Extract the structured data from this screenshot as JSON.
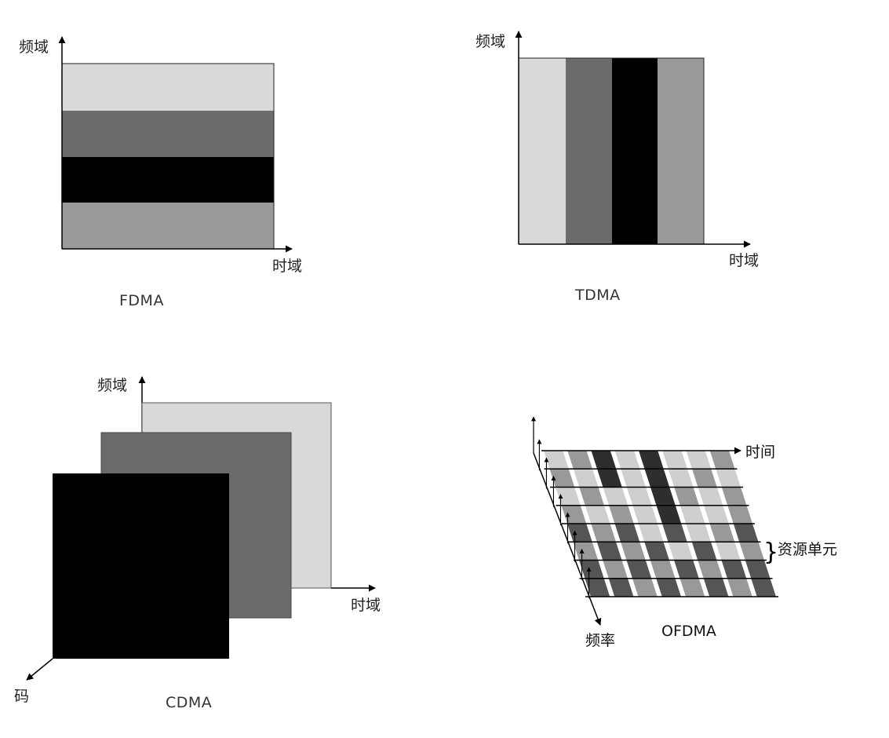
{
  "fdma": {
    "caption": "FDMA",
    "y_axis_label": "频域",
    "x_axis_label": "时域",
    "bands": [
      "#d9d9d9",
      "#6b6b6b",
      "#000000",
      "#999999"
    ]
  },
  "tdma": {
    "caption": "TDMA",
    "y_axis_label": "频域",
    "x_axis_label": "时域",
    "slots": [
      "#d9d9d9",
      "#6b6b6b",
      "#000000",
      "#999999"
    ]
  },
  "cdma": {
    "caption": "CDMA",
    "y_axis_label": "频域",
    "x_axis_label": "时域",
    "z_axis_label": "码",
    "layers": [
      "#d9d9d9",
      "#6b6b6b",
      "#000000"
    ]
  },
  "ofdma": {
    "caption": "OFDMA",
    "time_label": "时间",
    "freq_label": "频率",
    "resource_label": "资源单元",
    "brace": "}",
    "colors": [
      "#555555",
      "#999999",
      "#cfcfcf",
      "#2e2e2e"
    ],
    "grid": [
      [
        2,
        1,
        3,
        2,
        3,
        2,
        2,
        1
      ],
      [
        1,
        2,
        3,
        2,
        3,
        2,
        1,
        2
      ],
      [
        2,
        1,
        2,
        2,
        3,
        1,
        2,
        1
      ],
      [
        1,
        2,
        1,
        2,
        3,
        2,
        2,
        1
      ],
      [
        0,
        1,
        0,
        2,
        0,
        2,
        1,
        0
      ],
      [
        1,
        0,
        1,
        0,
        2,
        0,
        2,
        1
      ],
      [
        0,
        1,
        0,
        1,
        0,
        1,
        0,
        0
      ],
      [
        0,
        0,
        1,
        0,
        1,
        0,
        1,
        0
      ]
    ]
  }
}
